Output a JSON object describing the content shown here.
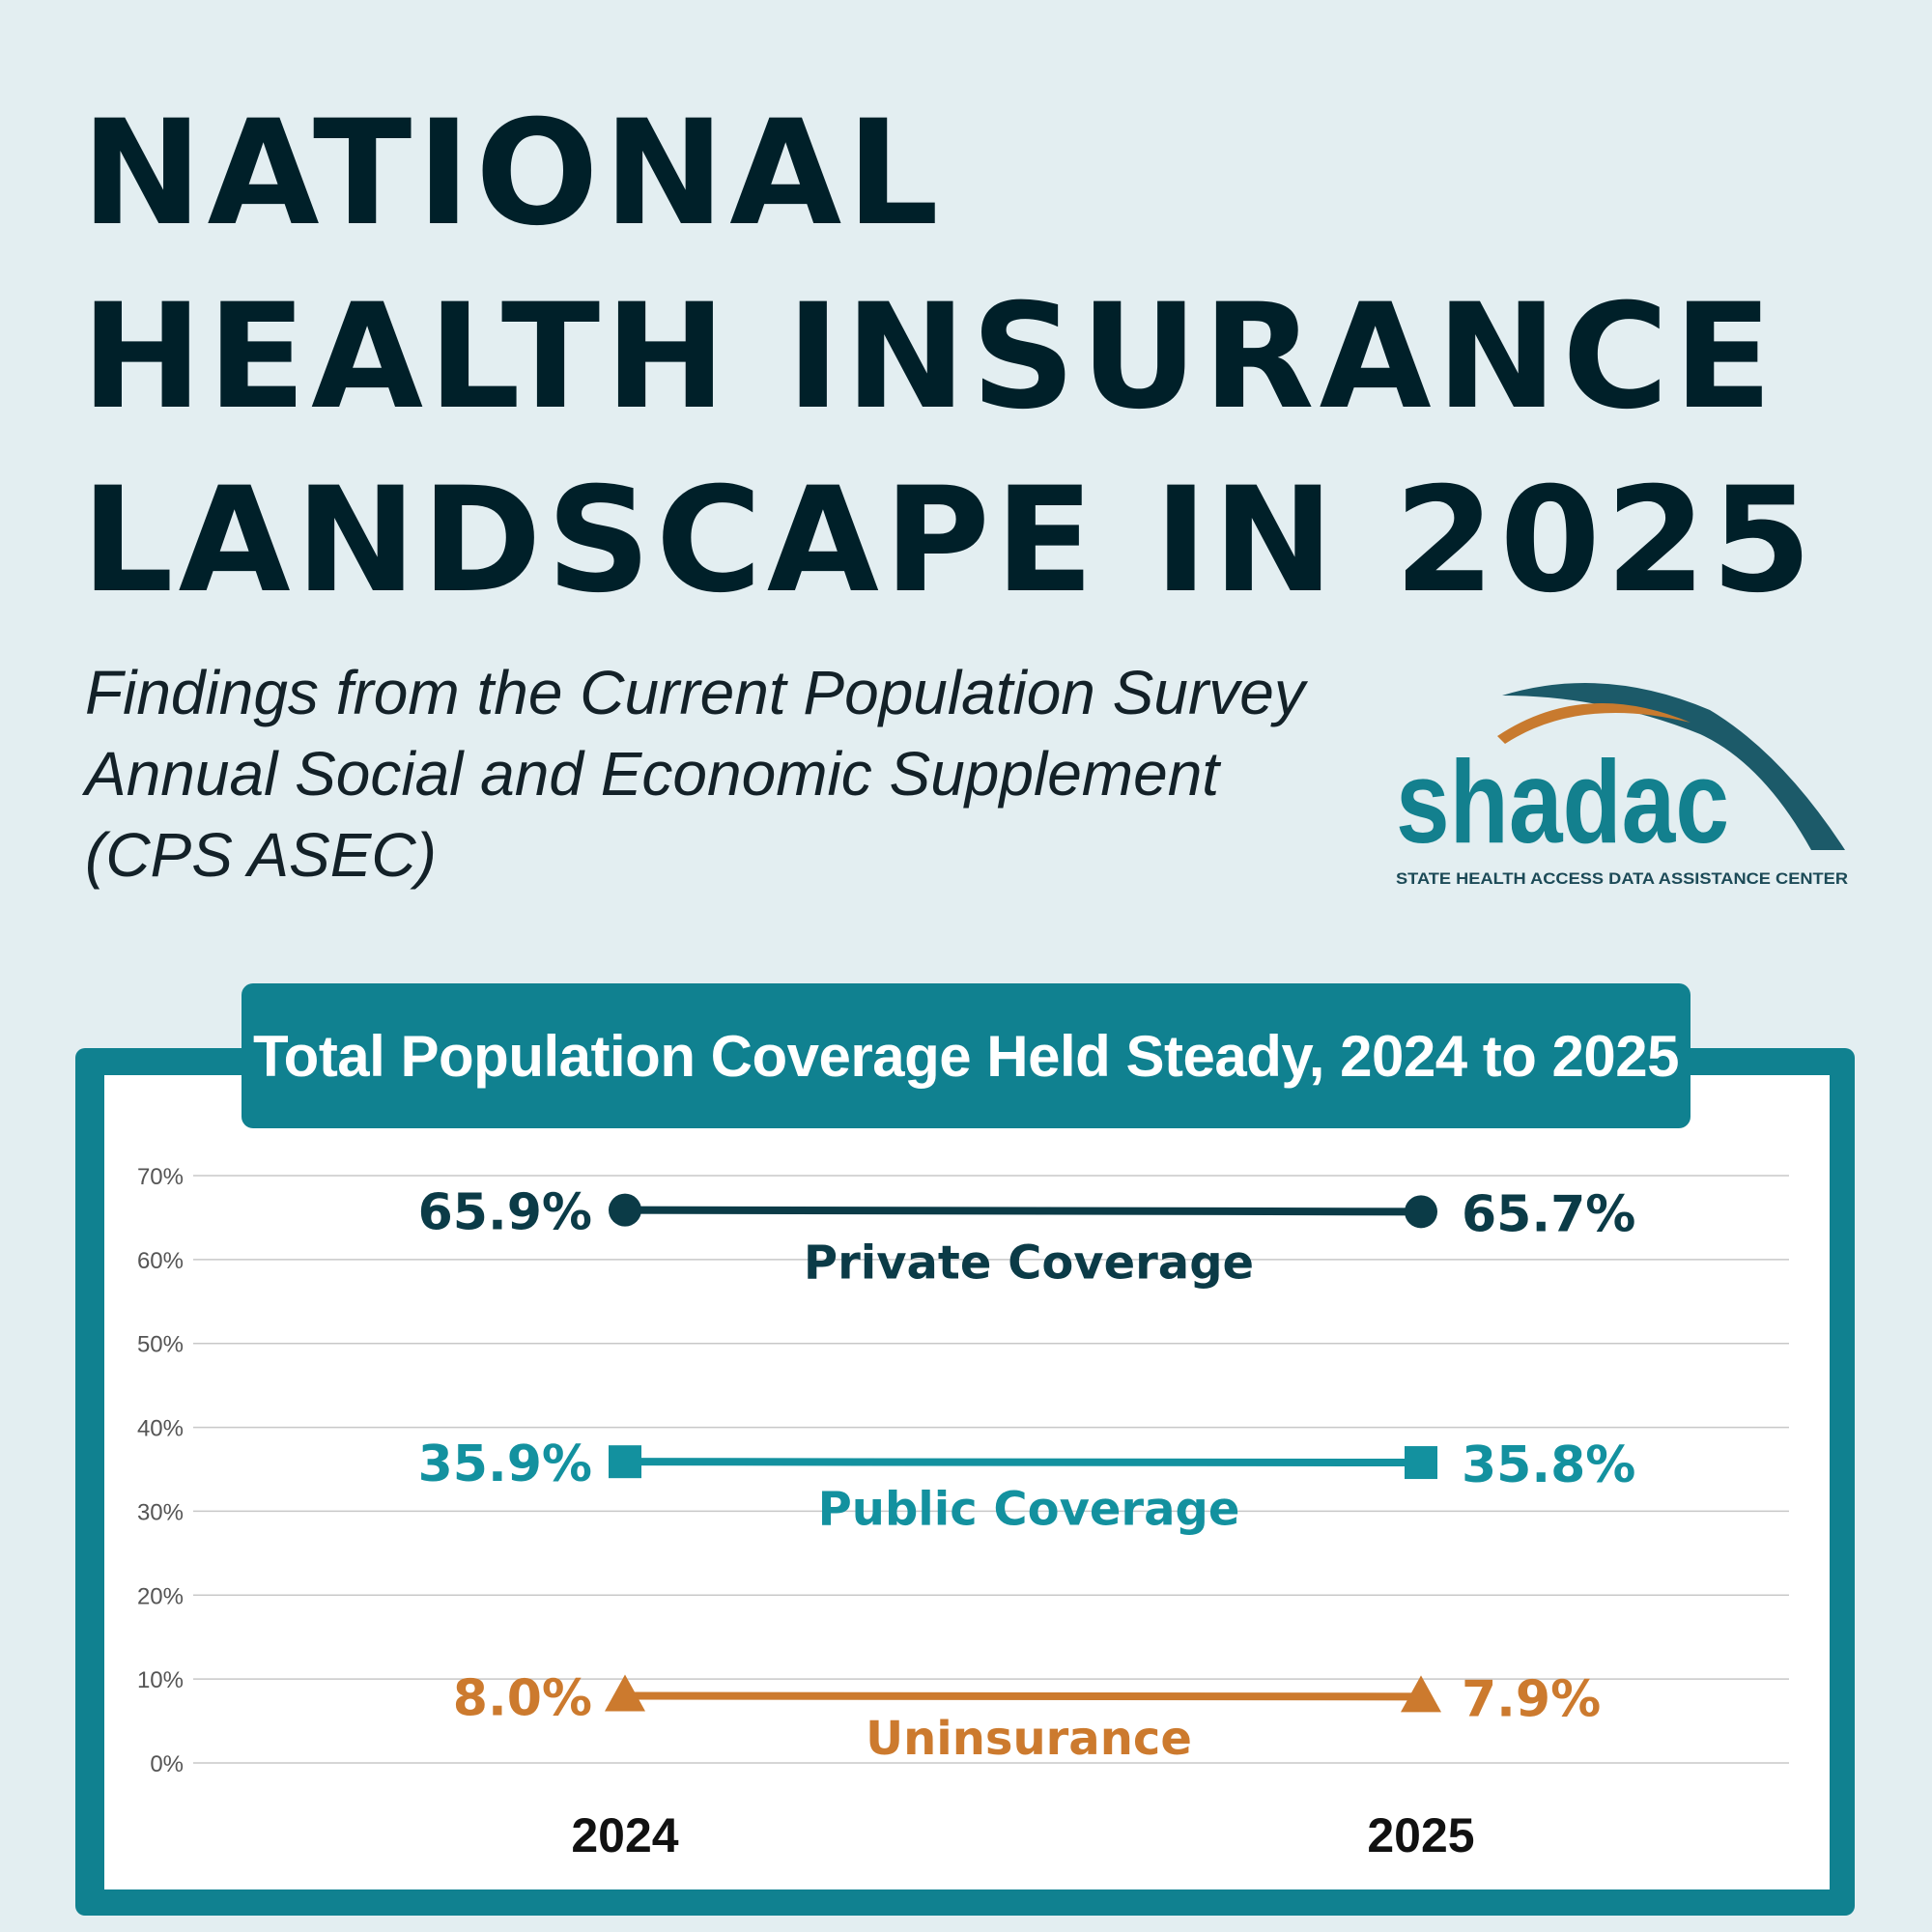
{
  "header": {
    "title_lines": [
      "NATIONAL",
      "HEALTH INSURANCE",
      "LANDSCAPE IN 2025"
    ],
    "subtitle_lines": [
      "Findings from the Current Population Survey",
      "Annual Social and Economic Supplement",
      "(CPS ASEC)"
    ]
  },
  "logo": {
    "wordmark": "shadac",
    "tagline": "STATE HEALTH ACCESS DATA ASSISTANCE CENTER",
    "colors": {
      "teal": "#13808e",
      "dark_teal": "#1c5a69",
      "orange": "#c87a2e"
    }
  },
  "chart_data": {
    "type": "line",
    "title": "Total Population Coverage Held Steady, 2024 to 2025",
    "x": [
      "2024",
      "2025"
    ],
    "ylim": [
      0,
      70
    ],
    "yticks": [
      0,
      10,
      20,
      30,
      40,
      50,
      60,
      70
    ],
    "ytick_labels": [
      "0%",
      "10%",
      "20%",
      "30%",
      "40%",
      "50%",
      "60%",
      "70%"
    ],
    "grid": true,
    "series": [
      {
        "name": "Private Coverage",
        "values": [
          65.9,
          65.7
        ],
        "labels": [
          "65.9%",
          "65.7%"
        ],
        "marker": "circle",
        "color": "#0b3b47"
      },
      {
        "name": "Public Coverage",
        "values": [
          35.9,
          35.8
        ],
        "labels": [
          "35.9%",
          "35.8%"
        ],
        "marker": "square",
        "color": "#13919f"
      },
      {
        "name": "Uninsurance",
        "values": [
          8.0,
          7.9
        ],
        "labels": [
          "8.0%",
          "7.9%"
        ],
        "marker": "triangle",
        "color": "#cc7a2e"
      }
    ]
  }
}
